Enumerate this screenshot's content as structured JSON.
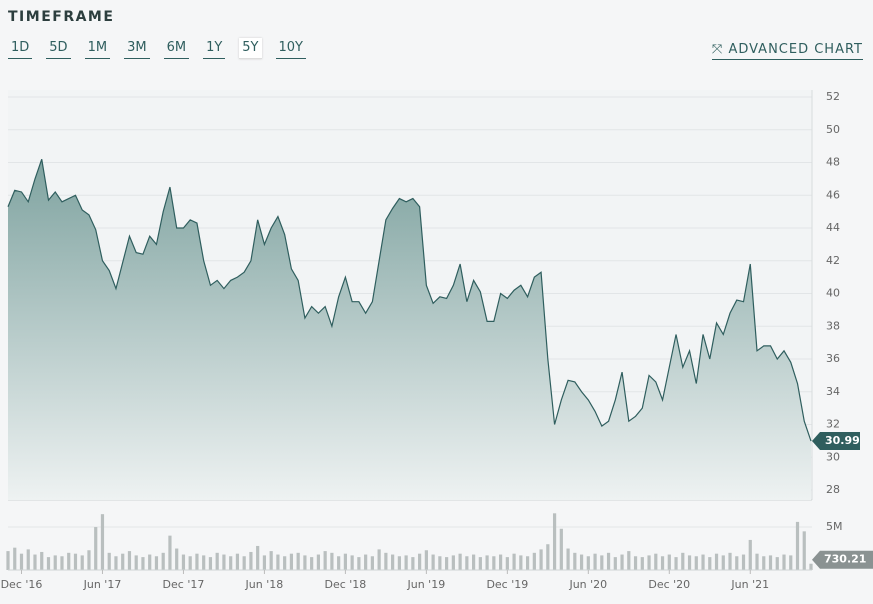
{
  "toolbar": {
    "label": "TIMEFRAME",
    "options": [
      "1D",
      "5D",
      "1M",
      "3M",
      "6M",
      "1Y",
      "5Y",
      "10Y"
    ],
    "selected": "5Y",
    "link": "ADVANCED CHART"
  },
  "chart_data": [
    {
      "type": "area",
      "color": "#2f5e5e",
      "values": [
        45.3,
        46.3,
        46.2,
        45.6,
        47.0,
        48.2,
        45.7,
        46.2,
        45.6,
        45.8,
        46.0,
        45.1,
        44.8,
        43.9,
        42.0,
        41.4,
        40.3,
        41.9,
        43.5,
        42.5,
        42.4,
        43.5,
        43.0,
        45.0,
        46.5,
        44.0,
        44.0,
        44.5,
        44.3,
        42.0,
        40.5,
        40.8,
        40.3,
        40.8,
        41.0,
        41.3,
        42.0,
        44.5,
        43.0,
        44.0,
        44.7,
        43.6,
        41.5,
        40.8,
        38.5,
        39.2,
        38.8,
        39.2,
        38.0,
        39.8,
        41.0,
        39.5,
        39.5,
        38.8,
        39.5,
        42.0,
        44.5,
        45.2,
        45.8,
        45.6,
        45.8,
        45.3,
        40.5,
        39.4,
        39.8,
        39.7,
        40.5,
        41.8,
        39.5,
        40.8,
        40.1,
        38.3,
        38.3,
        40.0,
        39.7,
        40.2,
        40.5,
        39.8,
        41.0,
        41.3,
        36.0,
        32.0,
        33.5,
        34.7,
        34.6,
        34.0,
        33.5,
        32.8,
        31.9,
        32.2,
        33.5,
        35.2,
        32.2,
        32.5,
        33.0,
        35.0,
        34.6,
        33.5,
        35.5,
        37.5,
        35.5,
        36.5,
        34.5,
        37.5,
        36.0,
        38.2,
        37.5,
        38.8,
        39.6,
        39.5,
        41.8,
        36.5,
        36.8,
        36.8,
        36.0,
        36.5,
        35.8,
        34.5,
        32.2,
        30.99
      ],
      "ylim": [
        28,
        52
      ],
      "yticks": [
        28,
        30,
        32,
        34,
        36,
        38,
        40,
        42,
        44,
        46,
        48,
        50,
        52
      ],
      "grid": true
    },
    {
      "type": "bar",
      "color": "#b9bfbf",
      "values": [
        2.2,
        2.6,
        1.9,
        2.4,
        1.8,
        2.1,
        1.5,
        1.7,
        1.6,
        2.0,
        1.9,
        1.7,
        2.3,
        5.0,
        6.5,
        2.0,
        1.6,
        1.9,
        2.2,
        1.7,
        1.5,
        1.8,
        1.6,
        2.0,
        4.0,
        2.5,
        1.8,
        1.6,
        1.9,
        1.7,
        1.5,
        2.0,
        1.8,
        1.6,
        1.9,
        1.6,
        2.1,
        2.8,
        1.7,
        2.2,
        1.8,
        1.6,
        1.9,
        2.0,
        1.7,
        1.5,
        1.8,
        2.2,
        2.0,
        1.6,
        1.9,
        1.7,
        1.5,
        1.8,
        1.6,
        2.4,
        2.0,
        1.8,
        1.6,
        1.7,
        1.5,
        1.9,
        2.3,
        1.8,
        1.6,
        1.5,
        1.7,
        1.9,
        1.6,
        1.8,
        1.5,
        1.7,
        1.6,
        1.8,
        1.5,
        1.9,
        1.7,
        1.6,
        2.0,
        2.4,
        3.0,
        6.6,
        4.8,
        2.5,
        2.0,
        1.8,
        1.6,
        1.9,
        1.7,
        2.0,
        1.5,
        1.8,
        2.2,
        1.6,
        1.5,
        1.7,
        1.9,
        1.6,
        1.8,
        1.5,
        2.0,
        1.7,
        1.6,
        1.8,
        1.5,
        1.9,
        1.7,
        2.0,
        1.6,
        1.8,
        3.5,
        1.9,
        1.6,
        1.7,
        1.5,
        1.8,
        1.7,
        5.6,
        4.5,
        0.73021
      ],
      "last_value_label": "730.21",
      "ylim": [
        0,
        7.8
      ],
      "yticks": [
        {
          "value": 5,
          "label": "5M"
        }
      ],
      "xticks": [
        {
          "value": 2,
          "label": "Dec '16"
        },
        {
          "value": 14,
          "label": "Jun '17"
        },
        {
          "value": 26,
          "label": "Dec '17"
        },
        {
          "value": 38,
          "label": "Jun '18"
        },
        {
          "value": 50,
          "label": "Dec '18"
        },
        {
          "value": 62,
          "label": "Jun '19"
        },
        {
          "value": 74,
          "label": "Dec '19"
        },
        {
          "value": 86,
          "label": "Jun '20"
        },
        {
          "value": 98,
          "label": "Dec '20"
        },
        {
          "value": 110,
          "label": "Jun '21"
        }
      ]
    }
  ]
}
